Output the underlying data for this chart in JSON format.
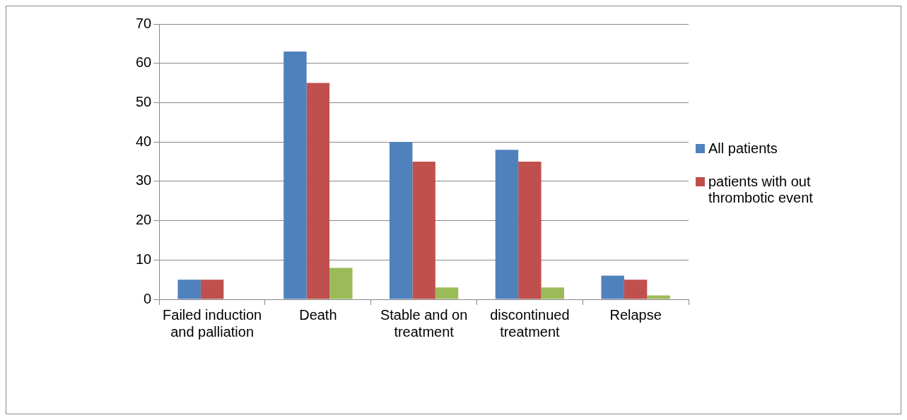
{
  "chart_data": {
    "type": "bar",
    "categories": [
      "Failed induction and palliation",
      "Death",
      "Stable and on treatment",
      "discontinued treatment",
      "Relapse"
    ],
    "series": [
      {
        "name": "All patients",
        "color": "#4f81bd",
        "values": [
          5,
          63,
          40,
          38,
          6
        ]
      },
      {
        "name": "patients with out thrombotic event",
        "color": "#c0504d",
        "values": [
          5,
          55,
          35,
          35,
          5
        ]
      },
      {
        "color": "#9bbb59",
        "values": [
          0,
          8,
          3,
          3,
          1
        ]
      }
    ],
    "ylim": [
      0,
      70
    ],
    "yticks": [
      0,
      10,
      20,
      30,
      40,
      50,
      60,
      70
    ],
    "grid": "y",
    "legend": "right"
  }
}
